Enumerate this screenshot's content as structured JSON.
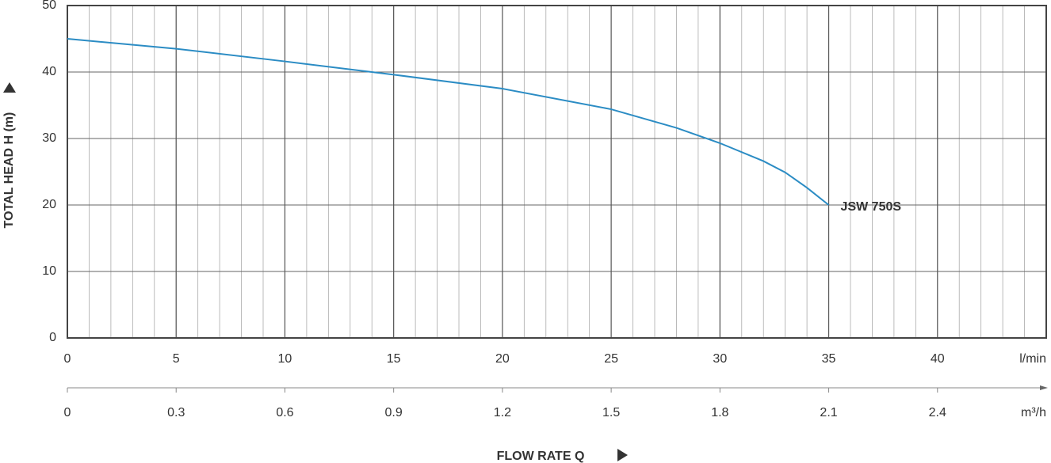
{
  "chart_data": {
    "type": "line",
    "ylabel": "TOTAL HEAD H (m)",
    "xlabel": "FLOW RATE Q",
    "x": [
      0,
      5,
      10,
      15,
      20,
      25,
      28,
      30,
      32,
      33,
      34,
      35
    ],
    "series": [
      {
        "name": "JSW 750S",
        "color": "#2b8cc4",
        "values": [
          45,
          43.5,
          41.6,
          39.6,
          37.5,
          34.4,
          31.6,
          29.3,
          26.6,
          24.9,
          22.6,
          20
        ]
      }
    ],
    "xlim": [
      0,
      45
    ],
    "xticks": [
      0,
      5,
      10,
      15,
      20,
      25,
      30,
      35,
      40
    ],
    "x_unit": "l/min",
    "ylim": [
      0,
      50
    ],
    "yticks": [
      0,
      10,
      20,
      30,
      40,
      50
    ],
    "x2lim": [
      0,
      2.7
    ],
    "x2ticks": [
      0,
      0.3,
      0.6,
      0.9,
      1.2,
      1.5,
      1.8,
      2.1,
      2.4
    ],
    "x2_unit": "m³/h",
    "grid": true,
    "x_minor_step": 1
  }
}
